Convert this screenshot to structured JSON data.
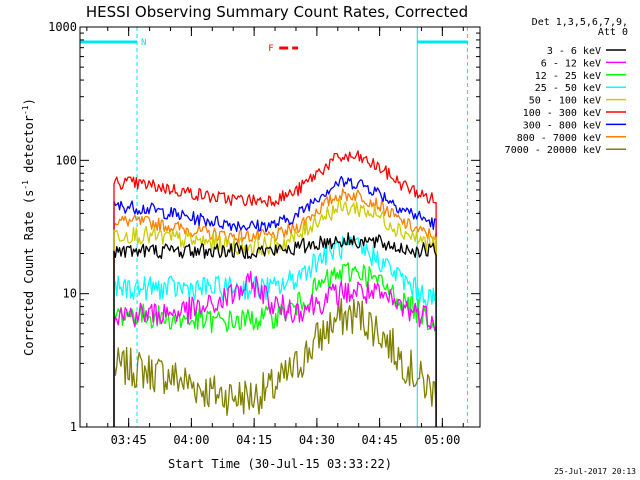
{
  "chart_data": {
    "type": "line",
    "title": "HESSI Observing Summary Count Rates, Corrected",
    "xlabel": "Start Time (30-Jul-15 03:33:22)",
    "ylabel_main": "Corrected Count Rate (s",
    "ylabel_sup1": "-1",
    "ylabel_mid": " detector",
    "ylabel_sup2": "-1",
    "ylabel_end": ")",
    "y_scale": "log",
    "ylim": [
      1,
      1000
    ],
    "xlim": [
      "03:33:22",
      "05:09:00"
    ],
    "y_ticks": [
      {
        "value": 1,
        "label": "1"
      },
      {
        "value": 10,
        "label": "10"
      },
      {
        "value": 100,
        "label": "100"
      },
      {
        "value": 1000,
        "label": "1000"
      }
    ],
    "x_ticks": [
      {
        "value": "03:45",
        "label": "03:45"
      },
      {
        "value": "04:00",
        "label": "04:00"
      },
      {
        "value": "04:15",
        "label": "04:15"
      },
      {
        "value": "04:30",
        "label": "04:30"
      },
      {
        "value": "04:45",
        "label": "04:45"
      },
      {
        "value": "05:00",
        "label": "05:00"
      }
    ],
    "legend_header": [
      "Det 1,3,5,6,7,9,",
      "Att 0"
    ],
    "legend_position": "right",
    "timestamp": "25-Jul-2017 20:13",
    "flags": [
      {
        "label": "N",
        "color": "#00e5ee",
        "ranges": [
          [
            "03:33:22",
            "03:47:00"
          ],
          [
            "04:54:00",
            "05:06:00"
          ]
        ]
      },
      {
        "label": "F",
        "color": "#ff0000",
        "ranges": [
          [
            "04:21:00",
            "04:25:30"
          ]
        ]
      }
    ],
    "x_sample": [
      "03:41:30",
      "03:45:00",
      "03:50:00",
      "03:55:00",
      "04:00:00",
      "04:05:00",
      "04:10:00",
      "04:15:00",
      "04:20:00",
      "04:25:00",
      "04:30:00",
      "04:35:00",
      "04:40:00",
      "04:45:00",
      "04:50:00",
      "04:55:00",
      "04:58:30"
    ],
    "series": [
      {
        "name": "3 - 6 keV",
        "color": "#000000",
        "values": [
          21,
          21,
          21,
          21,
          21,
          21,
          21,
          21,
          21,
          22,
          24,
          25,
          25,
          24,
          22,
          21,
          21
        ]
      },
      {
        "name": "6 - 12 keV",
        "color": "#ff00ff",
        "values": [
          7,
          7,
          7,
          7.2,
          7.5,
          8,
          10,
          12,
          8,
          7.5,
          8.5,
          10,
          10.5,
          9.5,
          8,
          7,
          6.5
        ]
      },
      {
        "name": "12 - 25 keV",
        "color": "#00ff00",
        "values": [
          7,
          7,
          6.8,
          6.5,
          6.3,
          6.2,
          6.2,
          6.4,
          6.8,
          8,
          11,
          14,
          15,
          12,
          9,
          7,
          6
        ]
      },
      {
        "name": "25 - 50 keV",
        "color": "#00ffff",
        "values": [
          11,
          11,
          11,
          11,
          11,
          11,
          11,
          11,
          11,
          13,
          18,
          22,
          22,
          18,
          13,
          10,
          9
        ]
      },
      {
        "name": "50 - 100 keV",
        "color": "#cccc00",
        "values": [
          28,
          28,
          27,
          26,
          25,
          24,
          23,
          23,
          23,
          26,
          36,
          44,
          44,
          38,
          30,
          25,
          23
        ]
      },
      {
        "name": "100 - 300 keV",
        "color": "#ff0000",
        "values": [
          68,
          68,
          65,
          61,
          57,
          53,
          51,
          50,
          51,
          58,
          80,
          105,
          105,
          88,
          67,
          55,
          50
        ]
      },
      {
        "name": "300 - 800 keV",
        "color": "#0000ff",
        "values": [
          45,
          45,
          43,
          40,
          37,
          35,
          33,
          32,
          33,
          38,
          53,
          68,
          68,
          57,
          44,
          37,
          33
        ]
      },
      {
        "name": "800 - 7000 keV",
        "color": "#ff8000",
        "values": [
          35,
          35,
          34,
          32,
          30,
          28,
          27,
          27,
          27,
          31,
          42,
          55,
          55,
          46,
          35,
          29,
          27
        ]
      },
      {
        "name": "7000 - 20000 keV",
        "color": "#808000",
        "values": [
          2.8,
          2.8,
          2.6,
          2.4,
          2.1,
          1.8,
          1.7,
          1.7,
          2,
          2.8,
          4.5,
          6.5,
          7,
          5.2,
          3.3,
          2.2,
          1.8
        ]
      }
    ]
  }
}
